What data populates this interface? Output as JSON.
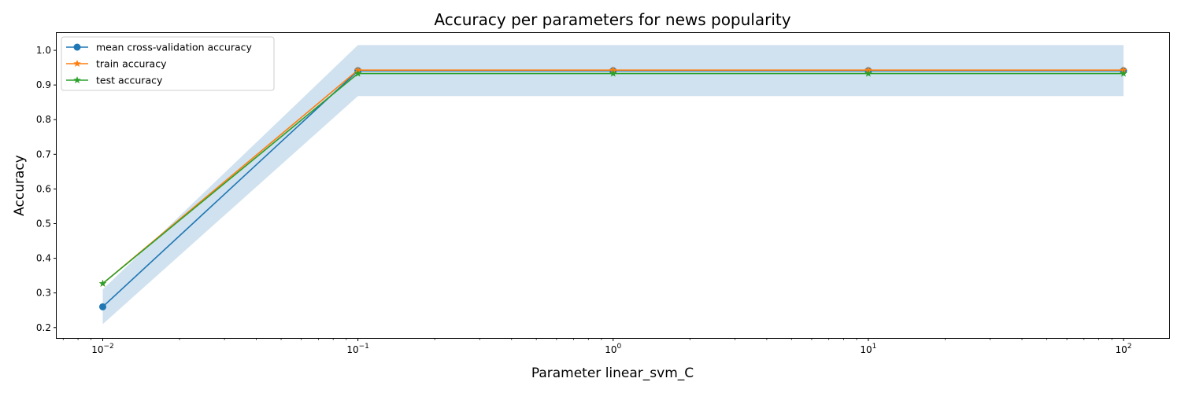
{
  "chart_data": {
    "type": "line",
    "title": "Accuracy per parameters for news popularity",
    "xlabel": "Parameter linear_svm_C",
    "ylabel": "Accuracy",
    "xscale": "log",
    "x": [
      0.01,
      0.1,
      1,
      10,
      100
    ],
    "xlim": [
      0.0066,
      151
    ],
    "ylim": [
      0.17,
      1.05
    ],
    "yticks": [
      "0.2",
      "0.3",
      "0.4",
      "0.5",
      "0.6",
      "0.7",
      "0.8",
      "0.9",
      "1.0"
    ],
    "xticks": [
      {
        "base": "10",
        "exp": "−2"
      },
      {
        "base": "10",
        "exp": "−1"
      },
      {
        "base": "10",
        "exp": "0"
      },
      {
        "base": "10",
        "exp": "1"
      },
      {
        "base": "10",
        "exp": "2"
      }
    ],
    "band": {
      "lower": [
        0.21,
        0.868,
        0.868,
        0.868,
        0.868
      ],
      "upper": [
        0.31,
        1.015,
        1.015,
        1.015,
        1.015
      ],
      "color": "#d0e1ef"
    },
    "series": [
      {
        "name": "mean cross-validation accuracy",
        "values": [
          0.26,
          0.941,
          0.941,
          0.941,
          0.941
        ],
        "color": "#1f77b4",
        "marker": "circle"
      },
      {
        "name": "train accuracy",
        "values": [
          0.327,
          0.943,
          0.943,
          0.943,
          0.943
        ],
        "color": "#ff7f0e",
        "marker": "star"
      },
      {
        "name": "test accuracy",
        "values": [
          0.327,
          0.933,
          0.933,
          0.933,
          0.933
        ],
        "color": "#2ca02c",
        "marker": "star"
      }
    ],
    "legend": "top-left",
    "grid": false
  }
}
